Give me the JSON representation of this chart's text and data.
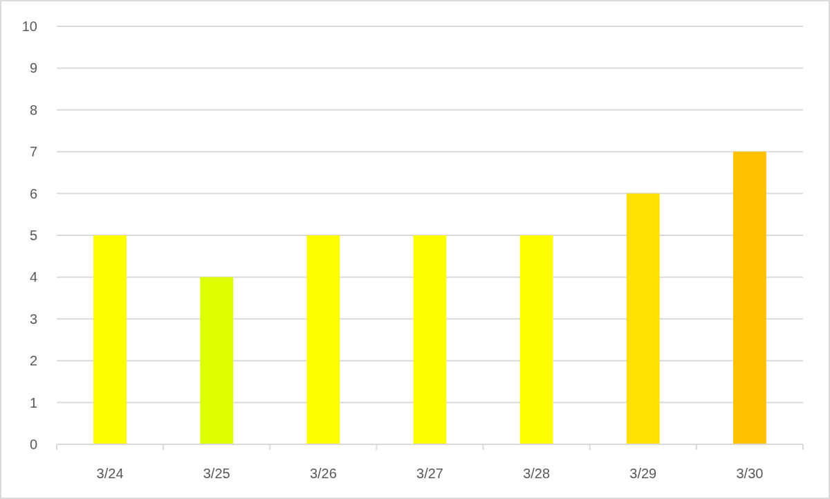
{
  "chart_data": {
    "type": "bar",
    "categories": [
      "3/24",
      "3/25",
      "3/26",
      "3/27",
      "3/28",
      "3/29",
      "3/30"
    ],
    "values": [
      5,
      4,
      5,
      5,
      5,
      6,
      7
    ],
    "colors": [
      "#ffff00",
      "#ddff00",
      "#ffff00",
      "#ffff00",
      "#ffff00",
      "#ffe100",
      "#ffc000"
    ],
    "ylim": [
      0,
      10
    ],
    "yticks": [
      0,
      1,
      2,
      3,
      4,
      5,
      6,
      7,
      8,
      9,
      10
    ],
    "grid": "y"
  }
}
